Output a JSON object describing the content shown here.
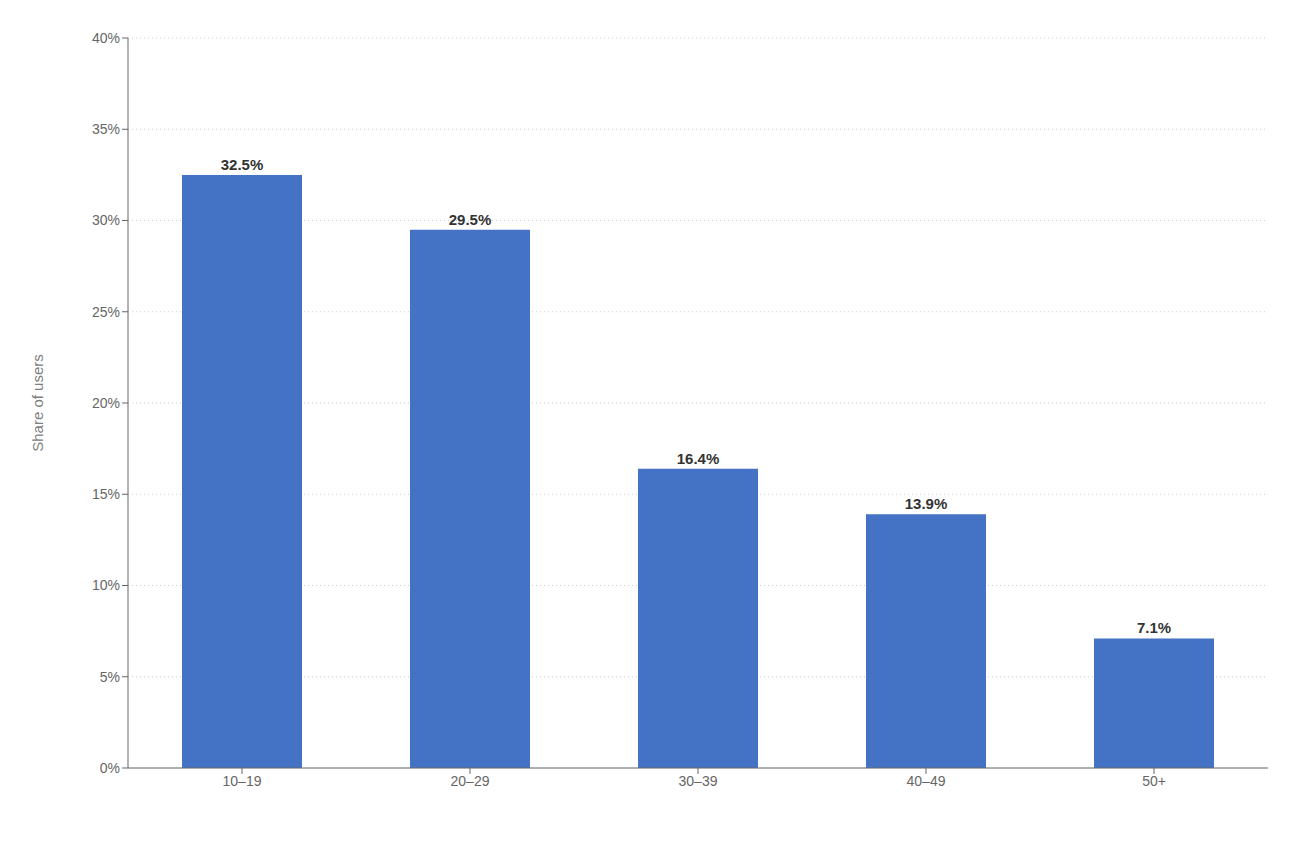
{
  "chart_data": {
    "type": "bar",
    "categories": [
      "10–19",
      "20–29",
      "30–39",
      "40–49",
      "50+"
    ],
    "values": [
      32.5,
      29.5,
      16.4,
      13.9,
      7.1
    ],
    "value_labels": [
      "32.5%",
      "29.5%",
      "16.4%",
      "13.9%",
      "7.1%"
    ],
    "data_labels": true,
    "color": "#4472c4",
    "ylabel": "Share of users",
    "ylim": [
      0,
      40
    ],
    "yticks": [
      {
        "value": 0,
        "label": "0%"
      },
      {
        "value": 5,
        "label": "5%"
      },
      {
        "value": 10,
        "label": "10%"
      },
      {
        "value": 15,
        "label": "15%"
      },
      {
        "value": 20,
        "label": "20%"
      },
      {
        "value": 25,
        "label": "25%"
      },
      {
        "value": 30,
        "label": "30%"
      },
      {
        "value": 35,
        "label": "35%"
      },
      {
        "value": 40,
        "label": "40%"
      }
    ],
    "grid": true
  }
}
